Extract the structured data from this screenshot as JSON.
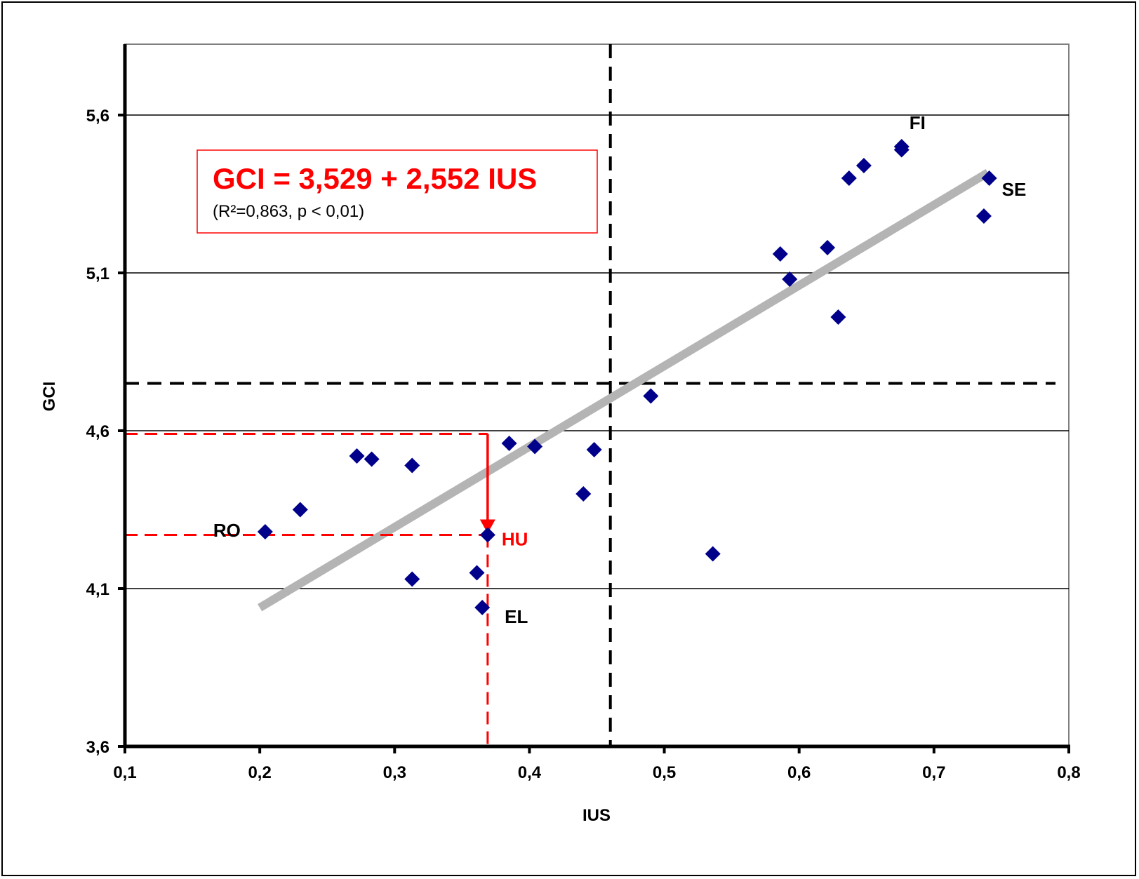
{
  "chart_data": {
    "type": "scatter",
    "xlabel": "IUS",
    "ylabel": "GCI",
    "xlim": [
      0.1,
      0.8
    ],
    "ylim": [
      3.6,
      5.9
    ],
    "x_ticks": [
      "0,1",
      "0,2",
      "0,3",
      "0,4",
      "0,5",
      "0,6",
      "0,7",
      "0,8"
    ],
    "x_tick_values": [
      0.1,
      0.2,
      0.3,
      0.4,
      0.5,
      0.6,
      0.7,
      0.8
    ],
    "y_ticks": [
      "3,6",
      "4,1",
      "4,6",
      "5,1",
      "5,6"
    ],
    "y_tick_values": [
      3.6,
      4.1,
      4.6,
      5.1,
      5.6
    ],
    "grid": "horizontal",
    "marker_color": "#00008b",
    "points": [
      {
        "x": 0.204,
        "y": 4.28,
        "label": "RO"
      },
      {
        "x": 0.23,
        "y": 4.35
      },
      {
        "x": 0.272,
        "y": 4.52
      },
      {
        "x": 0.283,
        "y": 4.51
      },
      {
        "x": 0.313,
        "y": 4.49
      },
      {
        "x": 0.313,
        "y": 4.13
      },
      {
        "x": 0.361,
        "y": 4.15
      },
      {
        "x": 0.365,
        "y": 4.04,
        "label": "EL"
      },
      {
        "x": 0.369,
        "y": 4.27,
        "label": "HU"
      },
      {
        "x": 0.385,
        "y": 4.56
      },
      {
        "x": 0.404,
        "y": 4.55
      },
      {
        "x": 0.44,
        "y": 4.4
      },
      {
        "x": 0.448,
        "y": 4.54
      },
      {
        "x": 0.49,
        "y": 4.71
      },
      {
        "x": 0.536,
        "y": 4.21
      },
      {
        "x": 0.586,
        "y": 5.16
      },
      {
        "x": 0.593,
        "y": 5.08
      },
      {
        "x": 0.621,
        "y": 5.18
      },
      {
        "x": 0.629,
        "y": 4.96
      },
      {
        "x": 0.637,
        "y": 5.4
      },
      {
        "x": 0.648,
        "y": 5.44
      },
      {
        "x": 0.676,
        "y": 5.49
      },
      {
        "x": 0.676,
        "y": 5.5,
        "label": "FI"
      },
      {
        "x": 0.737,
        "y": 5.28
      },
      {
        "x": 0.741,
        "y": 5.4,
        "label": "SE"
      }
    ],
    "trendline": {
      "intercept": 3.529,
      "slope": 2.552,
      "x_range": [
        0.2,
        0.74
      ],
      "color": "#b4b4b4"
    },
    "reference_lines": {
      "vertical_x": 0.46,
      "horizontal_y": 4.75,
      "color": "#000000"
    },
    "highlight": {
      "x": 0.369,
      "y_fit": 4.59,
      "y_actual": 4.27,
      "color": "#ff0000"
    },
    "annotation": {
      "equation": "GCI = 3,529 + 2,552 IUS",
      "stats": "(R²=0,863, p < 0,01)",
      "color": "#ff0000"
    }
  }
}
